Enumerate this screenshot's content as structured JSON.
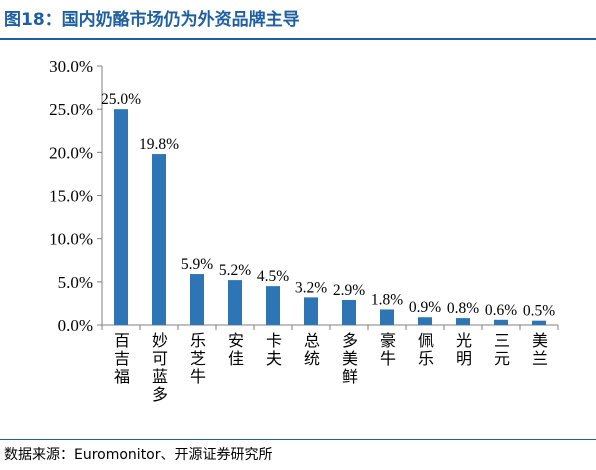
{
  "figure": {
    "title": "图18：国内奶酪市场仍为外资品牌主导",
    "source": "数据来源：Euromonitor、开源证券研究所"
  },
  "colors": {
    "bar": "#2e75b6",
    "accent": "#1f5f9f",
    "axis": "#808080"
  },
  "chart_data": {
    "type": "bar",
    "categories": [
      "百吉福",
      "妙可蓝多",
      "乐芝牛",
      "安佳",
      "卡夫",
      "总统",
      "多美鲜",
      "豪牛",
      "佩乐",
      "光明",
      "三元",
      "美兰"
    ],
    "values": [
      25.0,
      19.8,
      5.9,
      5.2,
      4.5,
      3.2,
      2.9,
      1.8,
      0.9,
      0.8,
      0.6,
      0.5
    ],
    "data_labels": [
      "25.0%",
      "19.8%",
      "5.9%",
      "5.2%",
      "4.5%",
      "3.2%",
      "2.9%",
      "1.8%",
      "0.9%",
      "0.8%",
      "0.6%",
      "0.5%"
    ],
    "y_ticks": [
      "0.0%",
      "5.0%",
      "10.0%",
      "15.0%",
      "20.0%",
      "25.0%",
      "30.0%"
    ],
    "ylim": [
      0,
      30
    ],
    "grid": false,
    "legend": "none"
  }
}
